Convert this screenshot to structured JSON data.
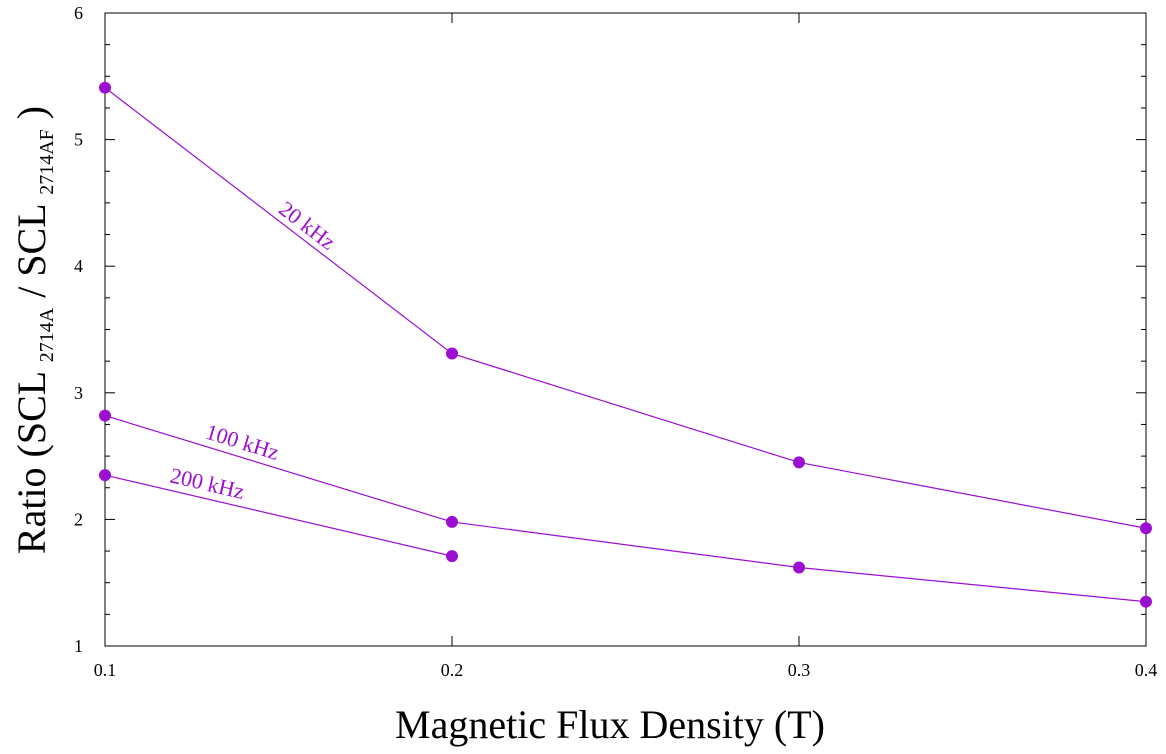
{
  "chart_data": {
    "type": "line",
    "title": "",
    "xlabel": "Magnetic Flux Density (T)",
    "ylabel": {
      "prefix": "Ratio (SCL",
      "sub1": "2714A",
      "middle": " / SCL",
      "sub2": "2714AF",
      "suffix": ")"
    },
    "xlim": [
      0.1,
      0.4
    ],
    "ylim": [
      1,
      6
    ],
    "xticks": [
      "0.1",
      "0.2",
      "0.3",
      "0.4"
    ],
    "yticks": [
      "1",
      "2",
      "3",
      "4",
      "5",
      "6"
    ],
    "grid": false,
    "legend": "none",
    "series_color": "#9b0fd0",
    "series": [
      {
        "name": "20 kHz",
        "x": [
          0.1,
          0.2,
          0.3,
          0.4
        ],
        "y": [
          5.41,
          3.31,
          2.45,
          1.93
        ]
      },
      {
        "name": "100 kHz",
        "x": [
          0.1,
          0.2,
          0.3,
          0.4
        ],
        "y": [
          2.82,
          1.98,
          1.62,
          1.35
        ]
      },
      {
        "name": "200 kHz",
        "x": [
          0.1,
          0.2
        ],
        "y": [
          2.35,
          1.71
        ]
      }
    ]
  }
}
